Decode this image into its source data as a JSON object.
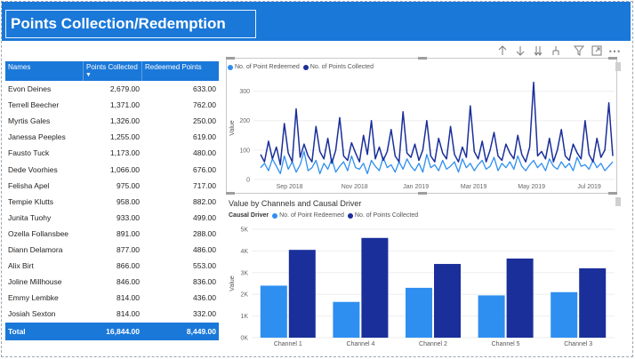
{
  "header": {
    "title": "Points Collection/Redemption"
  },
  "toolbar": {
    "icons": [
      "arrow-up-icon",
      "arrow-down-icon",
      "double-arrow-down-icon",
      "expand-hierarchy-icon",
      "filter-icon",
      "focus-mode-icon",
      "more-options-icon"
    ],
    "more_glyph": "⋯"
  },
  "table": {
    "headers": [
      "Names",
      "Points Collected",
      "Redeemed Points"
    ],
    "rows": [
      [
        "Evon Deines",
        "2,679.00",
        "633.00"
      ],
      [
        "Terrell Beecher",
        "1,371.00",
        "762.00"
      ],
      [
        "Myrtis Gales",
        "1,326.00",
        "250.00"
      ],
      [
        "Janessa Peeples",
        "1,255.00",
        "619.00"
      ],
      [
        "Fausto Tuck",
        "1,173.00",
        "480.00"
      ],
      [
        "Dede Voorhies",
        "1,066.00",
        "676.00"
      ],
      [
        "Felisha Apel",
        "975.00",
        "717.00"
      ],
      [
        "Tempie Klutts",
        "958.00",
        "882.00"
      ],
      [
        "Junita Tuohy",
        "933.00",
        "499.00"
      ],
      [
        "Ozella Follansbee",
        "891.00",
        "288.00"
      ],
      [
        "Diann Delamora",
        "877.00",
        "486.00"
      ],
      [
        "Alix Birt",
        "866.00",
        "553.00"
      ],
      [
        "Joline Millhouse",
        "846.00",
        "836.00"
      ],
      [
        "Emmy Lembke",
        "814.00",
        "436.00"
      ],
      [
        "Josiah Sexton",
        "814.00",
        "332.00"
      ]
    ],
    "total": [
      "Total",
      "16,844.00",
      "8,449.00"
    ]
  },
  "colors": {
    "header": "#1a78d8",
    "redeemed": "#2f8ff0",
    "collected": "#1a2f9a"
  },
  "chart_data": [
    {
      "type": "line",
      "title": "",
      "ylabel": "Value",
      "xlabel": "",
      "legend": [
        "No. of Point Redeemed",
        "No. of Points Collected"
      ],
      "legend_position": "top-left",
      "x_ticks": [
        "Sep 2018",
        "Nov 2018",
        "Jan 2019",
        "Mar 2019",
        "May 2019",
        "Jul 2019"
      ],
      "y_ticks": [
        "0",
        "100",
        "200",
        "300"
      ],
      "ylim": [
        0,
        350
      ],
      "series": [
        {
          "name": "No. of Point Redeemed",
          "values": [
            40,
            55,
            30,
            70,
            45,
            20,
            80,
            35,
            60,
            25,
            50,
            95,
            30,
            40,
            65,
            20,
            55,
            35,
            70,
            25,
            45,
            60,
            30,
            80,
            40,
            35,
            55,
            20,
            65,
            45,
            30,
            75,
            40,
            50,
            25,
            60,
            35,
            70,
            45,
            30,
            55,
            25,
            85,
            40,
            50,
            30,
            65,
            35,
            45,
            60,
            25,
            70,
            40,
            55,
            30,
            50,
            65,
            35,
            45,
            75,
            30,
            55,
            40,
            60,
            35,
            80,
            45,
            30,
            50,
            65,
            40,
            55,
            30,
            70,
            45,
            35,
            60,
            40,
            55,
            30,
            75,
            45,
            50,
            35,
            65,
            40,
            55,
            30,
            45,
            60
          ]
        },
        {
          "name": "No. of Points Collected",
          "values": [
            85,
            60,
            130,
            70,
            110,
            50,
            190,
            90,
            60,
            240,
            75,
            120,
            80,
            60,
            180,
            95,
            70,
            140,
            55,
            100,
            210,
            80,
            65,
            125,
            90,
            60,
            150,
            85,
            200,
            70,
            110,
            65,
            95,
            170,
            80,
            60,
            230,
            90,
            75,
            120,
            65,
            100,
            200,
            80,
            60,
            140,
            90,
            70,
            180,
            85,
            60,
            110,
            75,
            250,
            95,
            70,
            130,
            60,
            100,
            160,
            80,
            65,
            120,
            90,
            70,
            150,
            85,
            60,
            110,
            330,
            80,
            95,
            70,
            140,
            60,
            100,
            170,
            80,
            65,
            120,
            90,
            70,
            200,
            85,
            60,
            140,
            75,
            100,
            260,
            80
          ]
        }
      ]
    },
    {
      "type": "bar",
      "title": "Value by Channels  and Causal Driver",
      "legend_title": "Causal Driver",
      "legend": [
        "No. of Point Redeemed",
        "No. of Points Collected"
      ],
      "legend_position": "top-left",
      "ylabel": "Value",
      "xlabel": "",
      "categories": [
        "Channel 1",
        "Channel 4",
        "Channel 2",
        "Channel 5",
        "Channel 3"
      ],
      "y_ticks": [
        "0K",
        "1K",
        "2K",
        "3K",
        "4K",
        "5K"
      ],
      "ylim": [
        0,
        5000
      ],
      "series": [
        {
          "name": "No. of Point Redeemed",
          "values": [
            2400,
            1650,
            2300,
            1950,
            2100
          ]
        },
        {
          "name": "No. of Points Collected",
          "values": [
            4050,
            4600,
            3400,
            3650,
            3200
          ]
        }
      ]
    }
  ]
}
